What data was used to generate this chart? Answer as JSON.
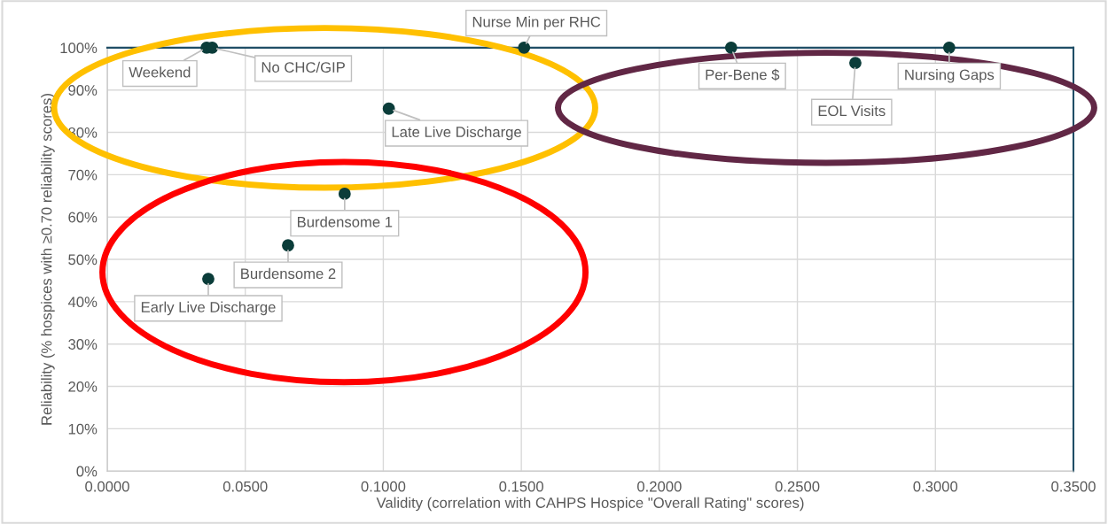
{
  "chart_data": {
    "type": "scatter",
    "xlabel": "Validity (correlation with CAHPS Hospice \"Overall Rating\" scores)",
    "ylabel": "Reliability (% hospices with ≥0.70 reliability scores)",
    "series": [
      {
        "color": "#0b3d3a",
        "x": [
          0.036,
          0.038,
          0.151,
          0.102,
          0.086,
          0.0655,
          0.0366,
          0.226,
          0.271,
          0.305
        ],
        "values": [
          100,
          100,
          100,
          85.6,
          65.5,
          53.3,
          45.4,
          100,
          96.4,
          100
        ]
      }
    ],
    "annotations": [
      {
        "text": "Weekend",
        "x": 0.036,
        "y": 100
      },
      {
        "text": "No CHC/GIP",
        "x": 0.038,
        "y": 100
      },
      {
        "text": "Nurse Min per RHC",
        "x": 0.151,
        "y": 100
      },
      {
        "text": "Late Live Discharge",
        "x": 0.102,
        "y": 85.6
      },
      {
        "text": "Burdensome 1",
        "x": 0.086,
        "y": 65.5
      },
      {
        "text": "Burdensome 2",
        "x": 0.0655,
        "y": 53.3
      },
      {
        "text": "Early Live Discharge",
        "x": 0.0366,
        "y": 45.4
      },
      {
        "text": "Per-Bene $",
        "x": 0.226,
        "y": 100
      },
      {
        "text": "EOL Visits",
        "x": 0.271,
        "y": 96.4
      },
      {
        "text": "Nursing Gaps",
        "x": 0.305,
        "y": 100
      }
    ],
    "xlim": [
      0,
      0.35
    ],
    "xticks": [
      {
        "value": 0,
        "label": "0.0000"
      },
      {
        "value": 0.05,
        "label": "0.0500"
      },
      {
        "value": 0.1,
        "label": "0.1000"
      },
      {
        "value": 0.15,
        "label": "0.1500"
      },
      {
        "value": 0.2,
        "label": "0.2000"
      },
      {
        "value": 0.25,
        "label": "0.2500"
      },
      {
        "value": 0.3,
        "label": "0.3000"
      },
      {
        "value": 0.35,
        "label": "0.3500"
      }
    ],
    "ylim": [
      0,
      100
    ],
    "yticks": [
      {
        "value": 0,
        "label": "0%"
      },
      {
        "value": 10,
        "label": "10%"
      },
      {
        "value": 20,
        "label": "20%"
      },
      {
        "value": 30,
        "label": "30%"
      },
      {
        "value": 40,
        "label": "40%"
      },
      {
        "value": 50,
        "label": "50%"
      },
      {
        "value": 60,
        "label": "60%"
      },
      {
        "value": 70,
        "label": "70%"
      },
      {
        "value": 80,
        "label": "80%"
      },
      {
        "value": 90,
        "label": "90%"
      },
      {
        "value": 100,
        "label": "100%"
      }
    ],
    "grid": true,
    "marker": "circle"
  }
}
